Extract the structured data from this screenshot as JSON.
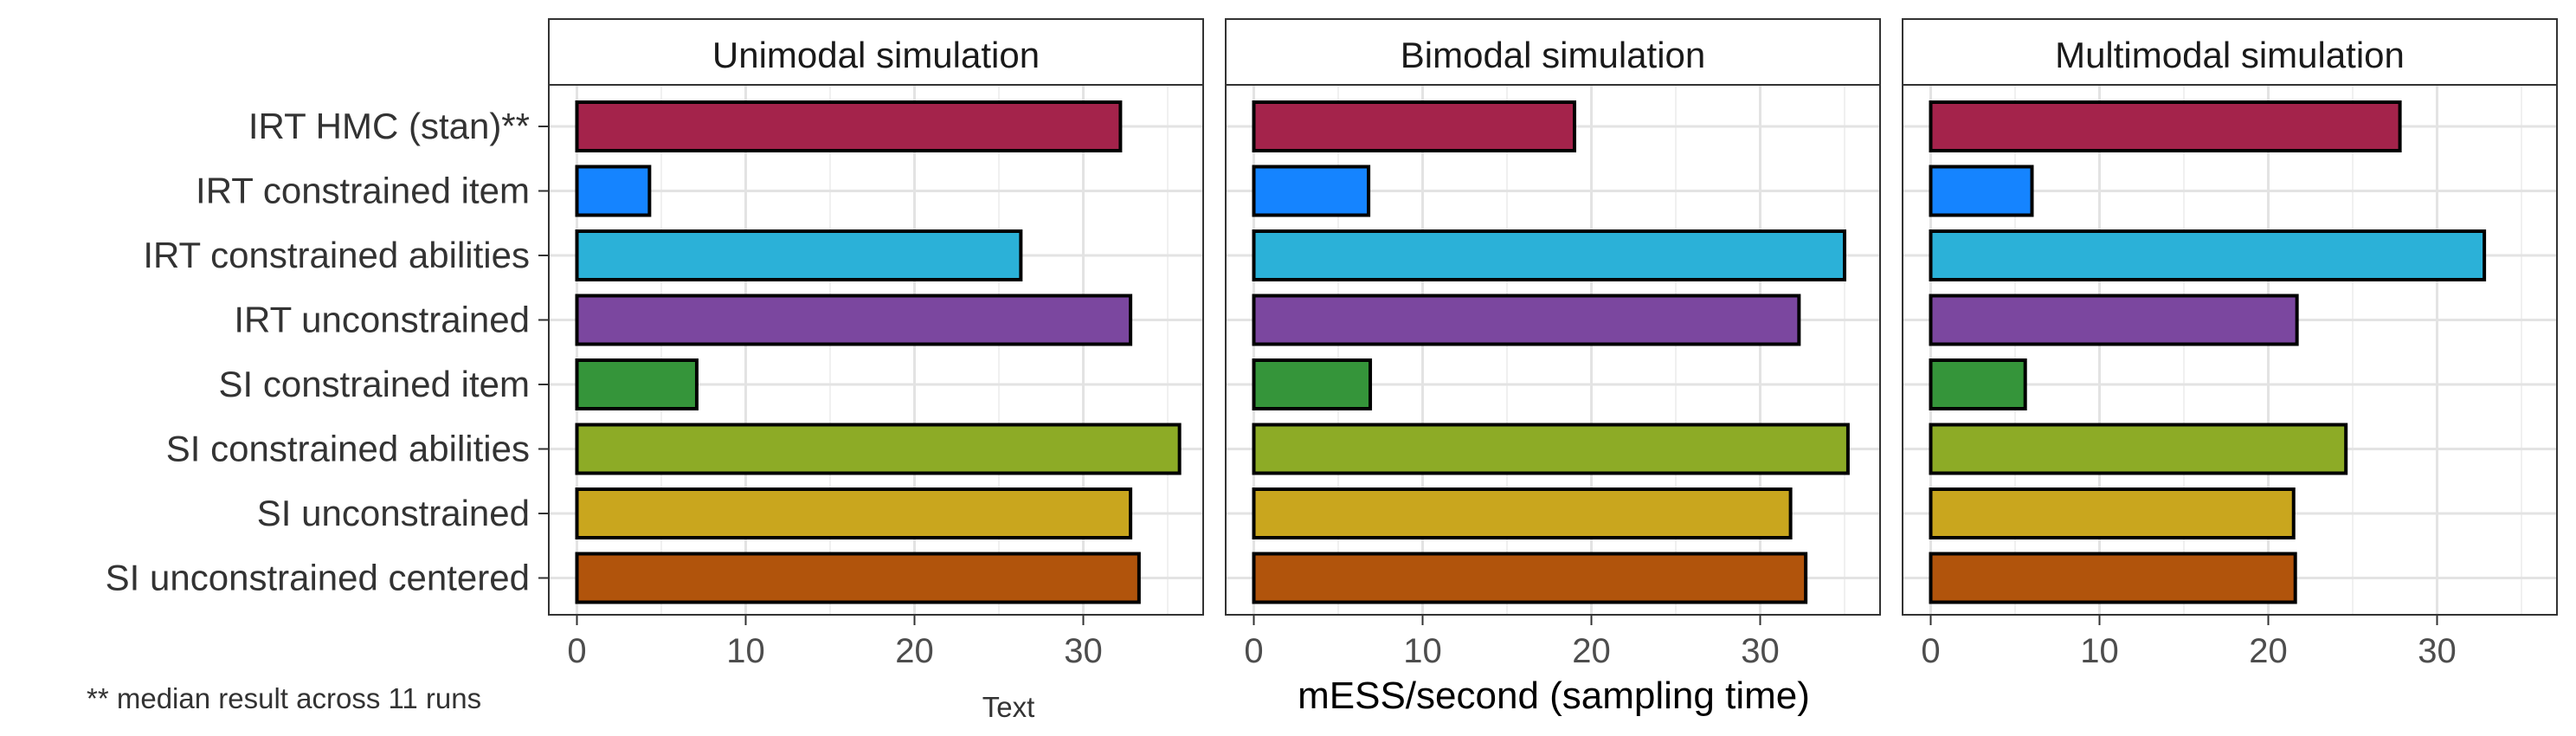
{
  "chart_data": {
    "type": "bar",
    "orientation": "horizontal",
    "xlabel": "mESS/second (sampling time)",
    "xlim": [
      -1.6,
      37
    ],
    "xticks": [
      0,
      10,
      20,
      30
    ],
    "grid": true,
    "categories": [
      "IRT HMC (stan)**",
      "IRT constrained item",
      "IRT constrained abilities",
      "IRT unconstrained",
      "SI constrained item",
      "SI constrained abilities",
      "SI unconstrained",
      "SI unconstrained centered"
    ],
    "colors": [
      "#A4234B",
      "#1584FF",
      "#2BB1D8",
      "#7B479F",
      "#35953A",
      "#8DAB26",
      "#C9A61E",
      "#B1540C"
    ],
    "panels": [
      {
        "title": "Unimodal simulation",
        "values": [
          32.2,
          4.3,
          26.3,
          32.8,
          7.1,
          35.7,
          32.8,
          33.3
        ]
      },
      {
        "title": "Bimodal simulation",
        "values": [
          19.0,
          6.8,
          35.0,
          32.3,
          6.9,
          35.2,
          31.8,
          32.7
        ]
      },
      {
        "title": "Multimodal simulation",
        "values": [
          27.8,
          6.0,
          32.8,
          21.7,
          5.6,
          24.6,
          21.5,
          21.6
        ]
      }
    ],
    "footnote": "** median result across 11 runs",
    "extra_label": "Text"
  }
}
